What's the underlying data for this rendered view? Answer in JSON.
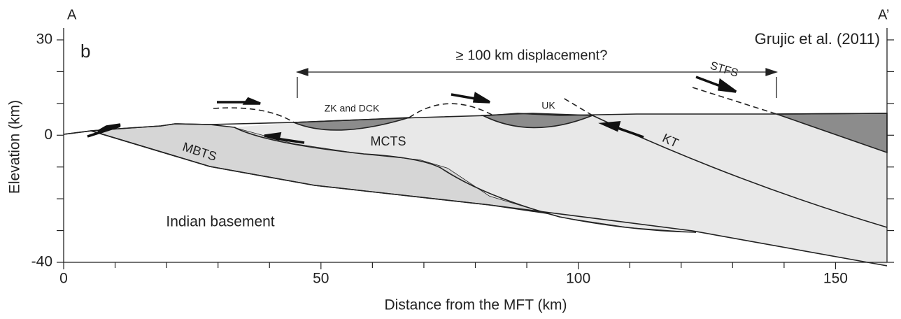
{
  "labels": {
    "start": "A",
    "end": "A’",
    "panel": "b",
    "citation": "Grujic et al. (2011)",
    "displacement": "≥ 100 km displacement?",
    "stfs": "STFS",
    "zk": "ZK and DCK",
    "uk": "UK",
    "kt": "KT",
    "mbts": "MBTS",
    "mcts": "MCTS",
    "basement": "Indian basement"
  },
  "axes": {
    "x_label": "Distance from the MFT (km)",
    "y_label": "Elevation (km)",
    "xlim": [
      0,
      160
    ],
    "ylim": [
      -40,
      30
    ],
    "xticks": [
      0,
      50,
      100,
      150
    ],
    "x_minor_ticks": [
      10,
      20,
      30,
      40,
      60,
      70,
      80,
      90,
      110,
      120,
      130,
      140
    ],
    "yticks": [
      -40,
      0,
      30
    ],
    "y_minor_ticks": [
      -30,
      -20,
      -10,
      10,
      20
    ]
  }
}
